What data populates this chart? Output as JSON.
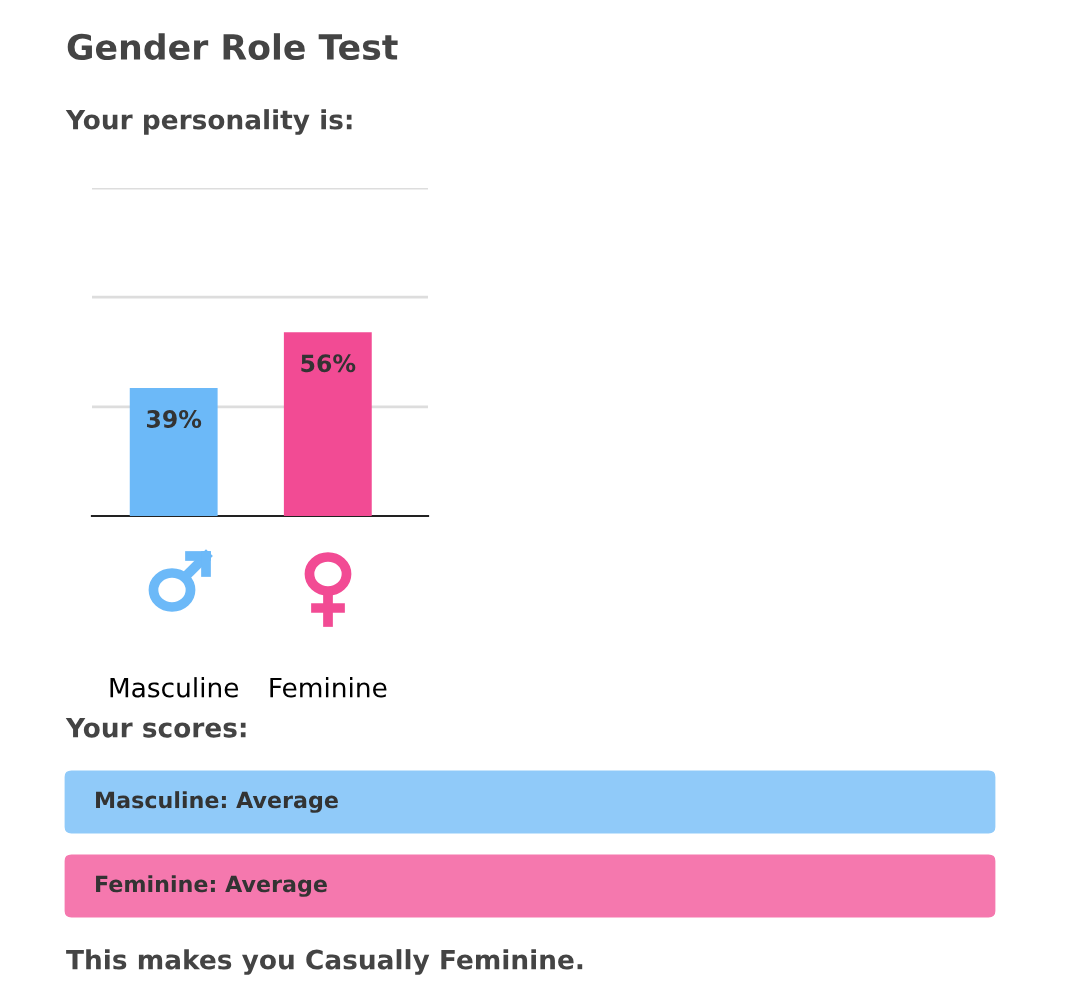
{
  "chart_data": {
    "type": "bar",
    "title": "Gender Role Test",
    "subtitle": "Your personality is:",
    "categories": [
      "Masculine",
      "Feminine"
    ],
    "values": [
      39,
      56
    ],
    "colors": [
      "#6cb9f8",
      "#f24b94"
    ],
    "value_labels": [
      "39%",
      "56%"
    ],
    "ylim": [
      0,
      100
    ],
    "yticks": [
      {
        "value": 33.3,
        "label": null
      },
      {
        "value": 66.7,
        "label": null
      },
      {
        "value": 100,
        "label": null
      }
    ],
    "tick_labels": "x",
    "grid": "y",
    "legend": false,
    "annotations": [
      "Your scores:",
      "Masculine: Average",
      "Feminine: Average",
      "This makes you Casually Feminine."
    ]
  }
}
